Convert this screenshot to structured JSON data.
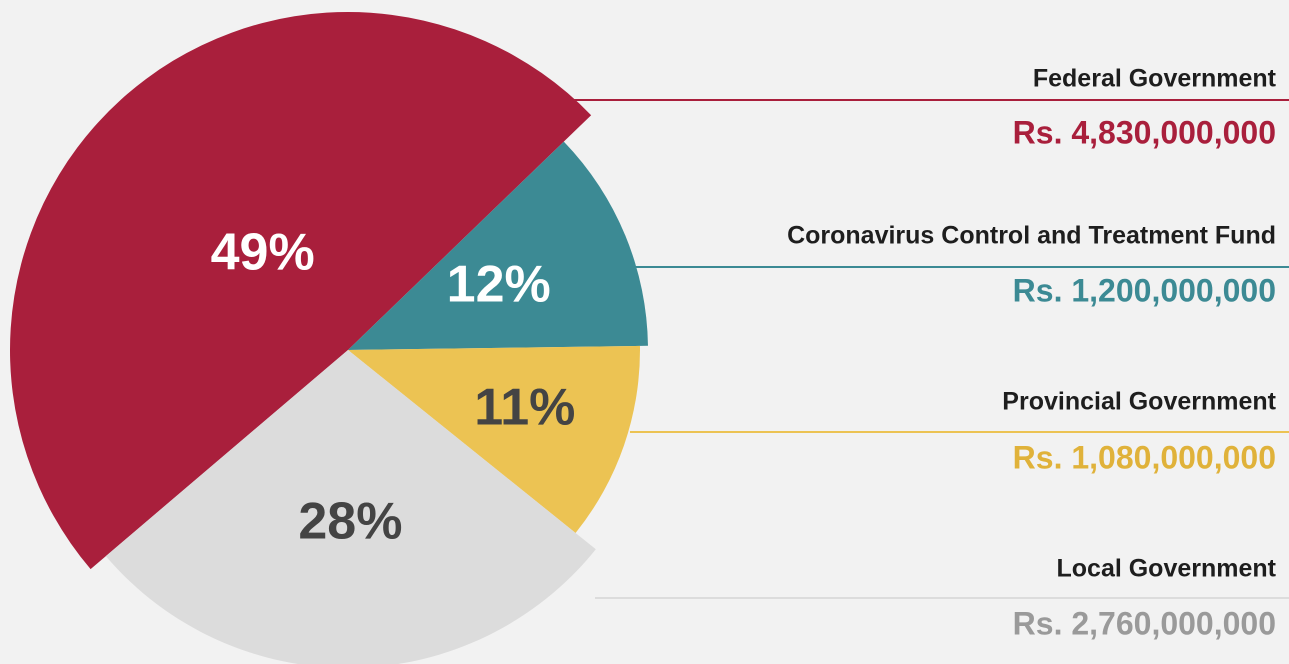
{
  "chart_data": {
    "type": "pie",
    "categories": [
      "Federal Government",
      "Coronavirus Control and Treatment Fund",
      "Provincial Government",
      "Local Government"
    ],
    "values": [
      49,
      12,
      11,
      28
    ],
    "value_labels": [
      "49%",
      "12%",
      "11%",
      "28%"
    ],
    "amount_labels": [
      "Rs. 4,830,000,000",
      "Rs. 1,200,000,000",
      "Rs. 1,080,000,000",
      "Rs. 2,760,000,000"
    ],
    "colors": [
      "#a91f3c",
      "#3c8a94",
      "#ecc353",
      "#dcdcdc"
    ]
  }
}
